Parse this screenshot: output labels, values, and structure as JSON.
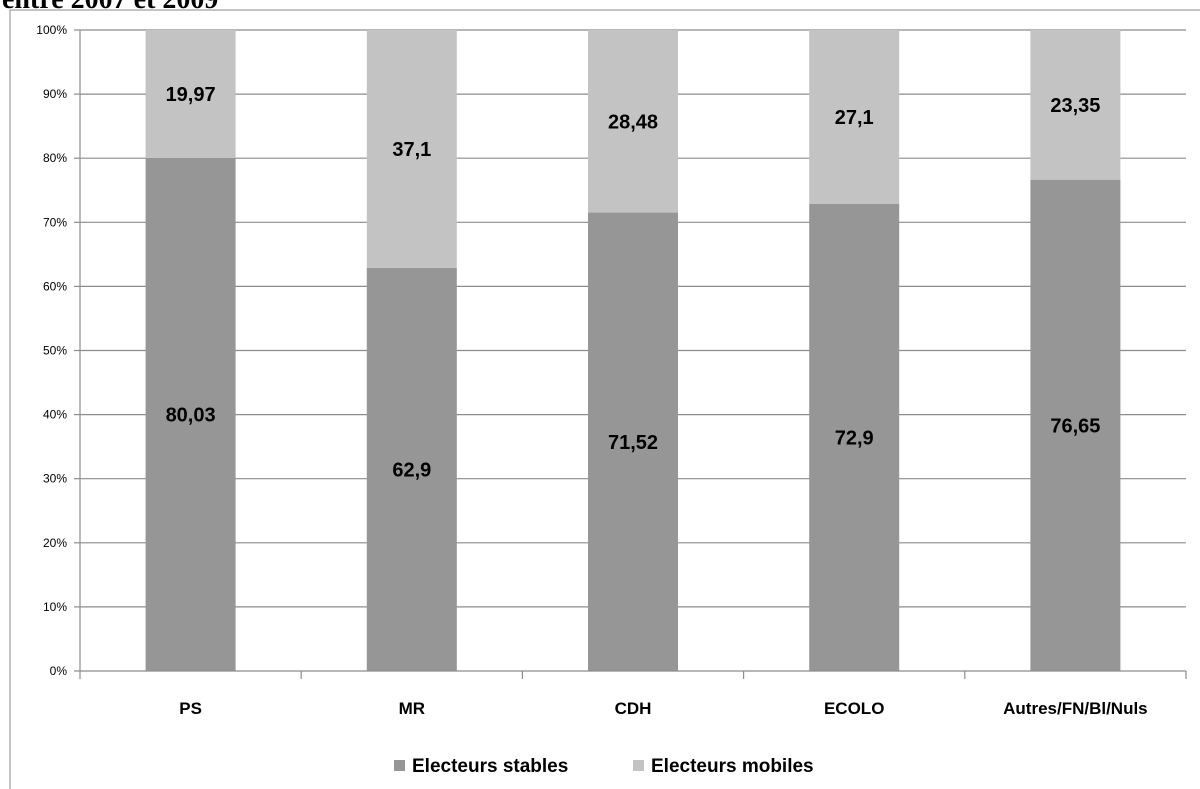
{
  "page": {
    "title": "entre 2007 et 2009"
  },
  "chart_data": {
    "type": "bar",
    "stacked": true,
    "categories": [
      "PS",
      "MR",
      "CDH",
      "ECOLO",
      "Autres/FN/Bl/Nuls"
    ],
    "series": [
      {
        "name": "Electeurs stables",
        "values": [
          80.03,
          62.9,
          71.52,
          72.9,
          76.65
        ],
        "labels": [
          "80,03",
          "62,9",
          "71,52",
          "72,9",
          "76,65"
        ],
        "color": "#969696"
      },
      {
        "name": "Electeurs mobiles",
        "values": [
          19.97,
          37.1,
          28.48,
          27.1,
          23.35
        ],
        "labels": [
          "19,97",
          "37,1",
          "28,48",
          "27,1",
          "23,35"
        ],
        "color": "#c3c3c3"
      }
    ],
    "ylim": [
      0,
      100
    ],
    "yticks": [
      "0%",
      "10%",
      "20%",
      "30%",
      "40%",
      "50%",
      "60%",
      "70%",
      "80%",
      "90%",
      "100%"
    ],
    "grid": true,
    "legend": "bottom"
  }
}
